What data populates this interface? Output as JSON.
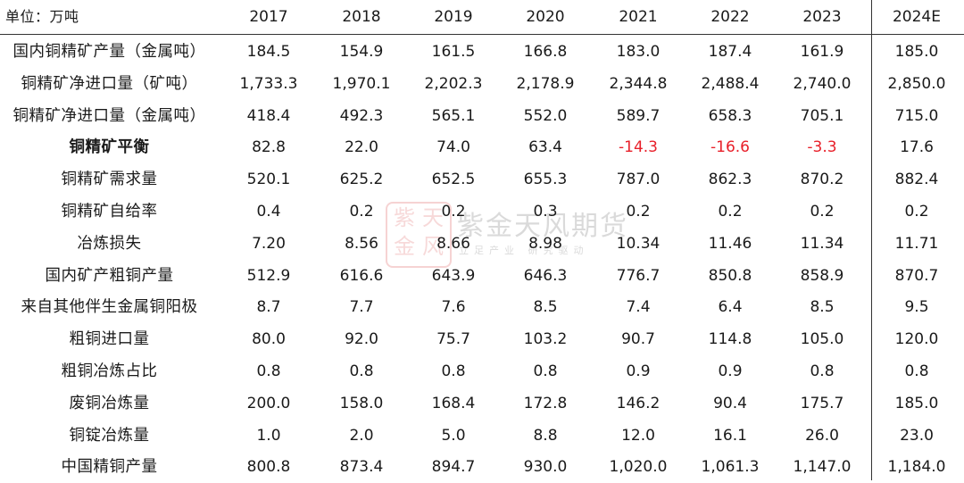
{
  "header": {
    "unit_label": "单位：万吨",
    "years": [
      "2017",
      "2018",
      "2019",
      "2020",
      "2021",
      "2022",
      "2023",
      "2024E"
    ]
  },
  "rows": [
    {
      "label": "国内铜精矿产量（金属吨）",
      "values": [
        "184.5",
        "154.9",
        "161.5",
        "166.8",
        "183.0",
        "187.4",
        "161.9",
        "185.0"
      ]
    },
    {
      "label": "铜精矿净进口量（矿吨）",
      "values": [
        "1,733.3",
        "1,970.1",
        "2,202.3",
        "2,178.9",
        "2,344.8",
        "2,488.4",
        "2,740.0",
        "2,850.0"
      ]
    },
    {
      "label": "铜精矿净进口量（金属吨）",
      "values": [
        "418.4",
        "492.3",
        "565.1",
        "552.0",
        "589.7",
        "658.3",
        "705.1",
        "715.0"
      ]
    },
    {
      "label": "铜精矿平衡",
      "values": [
        "82.8",
        "22.0",
        "74.0",
        "63.4",
        "-14.3",
        "-16.6",
        "-3.3",
        "17.6"
      ]
    },
    {
      "label": "铜精矿需求量",
      "values": [
        "520.1",
        "625.2",
        "652.5",
        "655.3",
        "787.0",
        "862.3",
        "870.2",
        "882.4"
      ]
    },
    {
      "label": "铜精矿自给率",
      "values": [
        "0.4",
        "0.2",
        "0.2",
        "0.3",
        "0.2",
        "0.2",
        "0.2",
        "0.2"
      ]
    },
    {
      "label": "冶炼损失",
      "values": [
        "7.20",
        "8.56",
        "8.66",
        "8.98",
        "10.34",
        "11.46",
        "11.34",
        "11.71"
      ]
    },
    {
      "label": "国内矿产粗铜产量",
      "values": [
        "512.9",
        "616.6",
        "643.9",
        "646.3",
        "776.7",
        "850.8",
        "858.9",
        "870.7"
      ]
    },
    {
      "label": "来自其他伴生金属铜阳极",
      "values": [
        "8.7",
        "7.7",
        "7.6",
        "8.5",
        "7.4",
        "6.4",
        "8.5",
        "9.5"
      ]
    },
    {
      "label": "粗铜进口量",
      "values": [
        "80.0",
        "92.0",
        "75.7",
        "103.2",
        "90.7",
        "114.8",
        "105.0",
        "120.0"
      ]
    },
    {
      "label": "粗铜冶炼占比",
      "values": [
        "0.8",
        "0.8",
        "0.8",
        "0.8",
        "0.9",
        "0.9",
        "0.8",
        "0.8"
      ]
    },
    {
      "label": "废铜冶炼量",
      "values": [
        "200.0",
        "158.0",
        "168.4",
        "172.8",
        "146.2",
        "90.4",
        "175.7",
        "185.0"
      ]
    },
    {
      "label": "铜锭冶炼量",
      "values": [
        "1.0",
        "2.0",
        "5.0",
        "8.8",
        "12.0",
        "16.1",
        "26.0",
        "23.0"
      ]
    },
    {
      "label": "中国精铜产量",
      "values": [
        "800.8",
        "873.4",
        "894.7",
        "930.0",
        "1,020.0",
        "1,061.3",
        "1,147.0",
        "1,184.0"
      ]
    }
  ],
  "watermark": {
    "seal_text": "紫天金风",
    "name": "紫金天风期货",
    "slogan": "立足产业 研究驱动"
  },
  "colors": {
    "negative": "#e8202a",
    "text": "#1a1a1a",
    "rule": "#333333"
  }
}
